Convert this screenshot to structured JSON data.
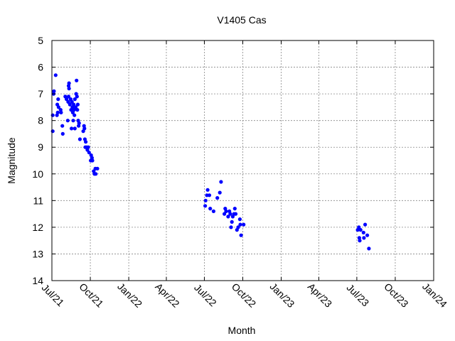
{
  "chart_data": {
    "type": "scatter",
    "title": "V1405 Cas",
    "xlabel": "Month",
    "ylabel": "Magnitude",
    "x_axis": "date",
    "xlim": [
      "2021-07-01",
      "2024-01-01"
    ],
    "x_ticks": [
      {
        "date": "2021-07-01",
        "label": "Jul/21"
      },
      {
        "date": "2021-10-01",
        "label": "Oct/21"
      },
      {
        "date": "2022-01-01",
        "label": "Jan/22"
      },
      {
        "date": "2022-04-01",
        "label": "Apr/22"
      },
      {
        "date": "2022-07-01",
        "label": "Jul/22"
      },
      {
        "date": "2022-10-01",
        "label": "Oct/22"
      },
      {
        "date": "2023-01-01",
        "label": "Jan/23"
      },
      {
        "date": "2023-04-01",
        "label": "Apr/23"
      },
      {
        "date": "2023-07-01",
        "label": "Jul/23"
      },
      {
        "date": "2023-10-01",
        "label": "Oct/23"
      },
      {
        "date": "2024-01-01",
        "label": "Jan/24"
      }
    ],
    "ylim": [
      5,
      14
    ],
    "y_inverted": true,
    "y_ticks": [
      5,
      6,
      7,
      8,
      9,
      10,
      11,
      12,
      13,
      14
    ],
    "grid": true,
    "marker_color": "#0000ff",
    "points": [
      {
        "x": "2021-07-03",
        "y": 8.4
      },
      {
        "x": "2021-07-03",
        "y": 7.8
      },
      {
        "x": "2021-07-05",
        "y": 7.0
      },
      {
        "x": "2021-07-06",
        "y": 6.9
      },
      {
        "x": "2021-07-10",
        "y": 6.3
      },
      {
        "x": "2021-07-13",
        "y": 7.8
      },
      {
        "x": "2021-07-14",
        "y": 7.4
      },
      {
        "x": "2021-07-15",
        "y": 7.7
      },
      {
        "x": "2021-07-16",
        "y": 7.2
      },
      {
        "x": "2021-07-17",
        "y": 7.5
      },
      {
        "x": "2021-07-22",
        "y": 7.6
      },
      {
        "x": "2021-07-23",
        "y": 7.7
      },
      {
        "x": "2021-07-26",
        "y": 8.2
      },
      {
        "x": "2021-07-27",
        "y": 8.5
      },
      {
        "x": "2021-08-02",
        "y": 7.1
      },
      {
        "x": "2021-08-05",
        "y": 7.2
      },
      {
        "x": "2021-08-08",
        "y": 8.0
      },
      {
        "x": "2021-08-09",
        "y": 7.3
      },
      {
        "x": "2021-08-10",
        "y": 6.7
      },
      {
        "x": "2021-08-10",
        "y": 7.1
      },
      {
        "x": "2021-08-11",
        "y": 6.6
      },
      {
        "x": "2021-08-11",
        "y": 6.8
      },
      {
        "x": "2021-08-13",
        "y": 7.4
      },
      {
        "x": "2021-08-15",
        "y": 7.2
      },
      {
        "x": "2021-08-16",
        "y": 7.6
      },
      {
        "x": "2021-08-17",
        "y": 8.3
      },
      {
        "x": "2021-08-18",
        "y": 7.3
      },
      {
        "x": "2021-08-19",
        "y": 7.5
      },
      {
        "x": "2021-08-20",
        "y": 7.7
      },
      {
        "x": "2021-08-21",
        "y": 8.0
      },
      {
        "x": "2021-08-22",
        "y": 7.4
      },
      {
        "x": "2021-08-23",
        "y": 7.6
      },
      {
        "x": "2021-08-24",
        "y": 7.8
      },
      {
        "x": "2021-08-25",
        "y": 7.2
      },
      {
        "x": "2021-08-25",
        "y": 8.3
      },
      {
        "x": "2021-08-27",
        "y": 7.5
      },
      {
        "x": "2021-08-28",
        "y": 7.0
      },
      {
        "x": "2021-08-29",
        "y": 6.5
      },
      {
        "x": "2021-08-30",
        "y": 7.1
      },
      {
        "x": "2021-08-31",
        "y": 7.6
      },
      {
        "x": "2021-09-01",
        "y": 7.4
      },
      {
        "x": "2021-09-02",
        "y": 8.0
      },
      {
        "x": "2021-09-03",
        "y": 8.2
      },
      {
        "x": "2021-09-04",
        "y": 8.1
      },
      {
        "x": "2021-09-06",
        "y": 8.7
      },
      {
        "x": "2021-09-14",
        "y": 8.4
      },
      {
        "x": "2021-09-16",
        "y": 8.2
      },
      {
        "x": "2021-09-17",
        "y": 8.3
      },
      {
        "x": "2021-09-18",
        "y": 8.7
      },
      {
        "x": "2021-09-19",
        "y": 9.0
      },
      {
        "x": "2021-09-20",
        "y": 8.8
      },
      {
        "x": "2021-09-22",
        "y": 9.0
      },
      {
        "x": "2021-09-24",
        "y": 9.1
      },
      {
        "x": "2021-09-26",
        "y": 9.0
      },
      {
        "x": "2021-09-28",
        "y": 9.2
      },
      {
        "x": "2021-10-02",
        "y": 9.5
      },
      {
        "x": "2021-10-03",
        "y": 9.3
      },
      {
        "x": "2021-10-05",
        "y": 9.4
      },
      {
        "x": "2021-10-06",
        "y": 9.5
      },
      {
        "x": "2021-10-09",
        "y": 9.9
      },
      {
        "x": "2021-10-11",
        "y": 10.0
      },
      {
        "x": "2021-10-13",
        "y": 9.8
      },
      {
        "x": "2021-10-14",
        "y": 10.0
      },
      {
        "x": "2021-10-18",
        "y": 9.8
      },
      {
        "x": "2022-07-03",
        "y": 11.2
      },
      {
        "x": "2022-07-04",
        "y": 11.0
      },
      {
        "x": "2022-07-07",
        "y": 10.8
      },
      {
        "x": "2022-07-09",
        "y": 10.6
      },
      {
        "x": "2022-07-13",
        "y": 10.8
      },
      {
        "x": "2022-07-15",
        "y": 11.3
      },
      {
        "x": "2022-07-23",
        "y": 11.4
      },
      {
        "x": "2022-08-01",
        "y": 10.9
      },
      {
        "x": "2022-08-07",
        "y": 10.7
      },
      {
        "x": "2022-08-10",
        "y": 10.3
      },
      {
        "x": "2022-08-18",
        "y": 11.5
      },
      {
        "x": "2022-08-20",
        "y": 11.3
      },
      {
        "x": "2022-08-22",
        "y": 11.4
      },
      {
        "x": "2022-08-27",
        "y": 11.6
      },
      {
        "x": "2022-08-30",
        "y": 11.4
      },
      {
        "x": "2022-09-01",
        "y": 11.5
      },
      {
        "x": "2022-09-03",
        "y": 12.0
      },
      {
        "x": "2022-09-05",
        "y": 11.8
      },
      {
        "x": "2022-09-07",
        "y": 11.6
      },
      {
        "x": "2022-09-10",
        "y": 11.5
      },
      {
        "x": "2022-09-12",
        "y": 11.3
      },
      {
        "x": "2022-09-14",
        "y": 11.5
      },
      {
        "x": "2022-09-17",
        "y": 12.1
      },
      {
        "x": "2022-09-20",
        "y": 12.0
      },
      {
        "x": "2022-09-24",
        "y": 11.7
      },
      {
        "x": "2022-09-25",
        "y": 11.9
      },
      {
        "x": "2022-09-27",
        "y": 12.3
      },
      {
        "x": "2022-10-03",
        "y": 11.9
      },
      {
        "x": "2023-07-03",
        "y": 12.1
      },
      {
        "x": "2023-07-06",
        "y": 12.0
      },
      {
        "x": "2023-07-07",
        "y": 12.4
      },
      {
        "x": "2023-07-08",
        "y": 12.5
      },
      {
        "x": "2023-07-10",
        "y": 12.1
      },
      {
        "x": "2023-07-17",
        "y": 12.2
      },
      {
        "x": "2023-07-18",
        "y": 12.4
      },
      {
        "x": "2023-07-21",
        "y": 11.9
      },
      {
        "x": "2023-07-26",
        "y": 12.3
      },
      {
        "x": "2023-07-30",
        "y": 12.8
      }
    ]
  }
}
